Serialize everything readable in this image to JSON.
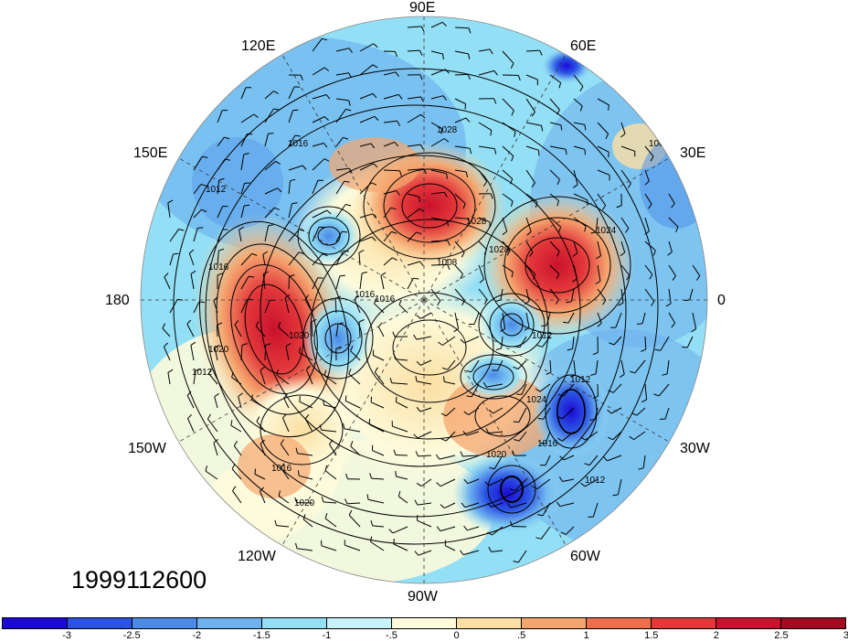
{
  "map": {
    "date_label": "1999112600",
    "lon_labels": {
      "e90": "90E",
      "e120": "120E",
      "e60": "60E",
      "e150": "150E",
      "e30": "30E",
      "w180": "180",
      "zero": "0",
      "w150": "150W",
      "w30": "30W",
      "w120": "120W",
      "w60": "60W",
      "w90": "90W"
    },
    "contour_labels": [
      "1016",
      "1012",
      "1016",
      "1028",
      "1008",
      "1024",
      "1016",
      "1012",
      "1012",
      "1020",
      "1024",
      "1016",
      "1020",
      "1012",
      "1016",
      "1020",
      "1020",
      "1028",
      "1028",
      "1012",
      "1008",
      "1016"
    ],
    "palette": {
      "deep_blue": "#1e22c9",
      "blue": "#3d7ae6",
      "light_blue": "#8fc3f0",
      "pale_blue": "#cdeefa",
      "cream": "#fbefc7",
      "orange": "#f19a5e",
      "red": "#dd3a2f",
      "dark_red": "#b3142a"
    }
  },
  "colorbar": {
    "colors": [
      "#1b0ad6",
      "#2b53e3",
      "#4a8be8",
      "#6eb3ef",
      "#93dff5",
      "#c9f3fb",
      "#fdfbdc",
      "#fcdfa3",
      "#f5a66f",
      "#ee6e4e",
      "#e3373a",
      "#c9122d",
      "#a30b22"
    ],
    "ticks": [
      "-3",
      "-2.5",
      "-2",
      "-1.5",
      "-1",
      "-.5",
      "0",
      ".5",
      "1",
      "1.5",
      "2",
      "2.5",
      "3"
    ]
  }
}
